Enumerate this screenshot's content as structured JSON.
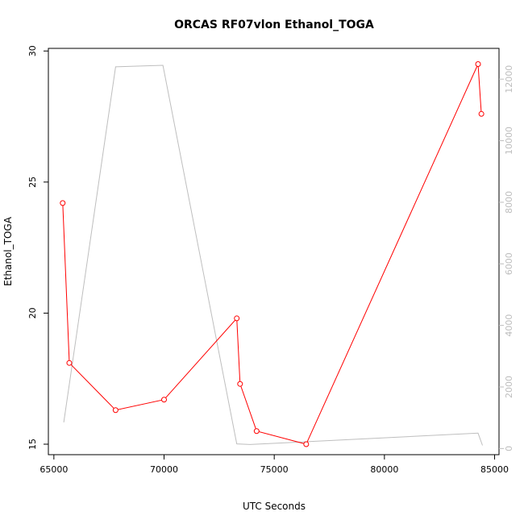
{
  "chart_data": {
    "type": "line",
    "title": "ORCAS RF07vlon Ethanol_TOGA",
    "xlabel": "UTC Seconds",
    "ylabel": "Ethanol_TOGA",
    "xlim": [
      64750,
      85200
    ],
    "ylim": [
      14.6,
      30.1
    ],
    "y2lim": [
      -200,
      13000
    ],
    "x_ticks": [
      65000,
      70000,
      75000,
      80000,
      85000
    ],
    "y_ticks": [
      15,
      20,
      25,
      30
    ],
    "y2_ticks": [
      0,
      2000,
      4000,
      6000,
      8000,
      10000,
      12000
    ],
    "grid": false,
    "series": [
      {
        "axis": "left",
        "color": "#ff0000",
        "marker": "open-circle",
        "x": [
          65400,
          65700,
          67800,
          70000,
          73300,
          73450,
          74200,
          76450,
          84250,
          84400
        ],
        "y": [
          24.2,
          18.1,
          16.3,
          16.7,
          19.8,
          17.3,
          15.5,
          15.0,
          29.5,
          27.6
        ]
      },
      {
        "axis": "right",
        "color": "#bebebe",
        "marker": "none",
        "x": [
          65450,
          67800,
          69950,
          73300,
          73900,
          84250,
          84450
        ],
        "y": [
          850,
          12400,
          12450,
          150,
          130,
          500,
          100
        ]
      }
    ]
  }
}
